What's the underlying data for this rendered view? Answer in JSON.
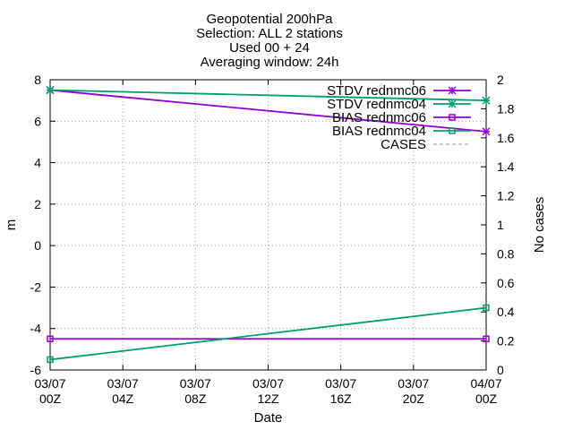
{
  "chart_data": {
    "type": "line",
    "title_lines": [
      "Geopotential 200hPa",
      "Selection: ALL      2 stations",
      "Used 00 + 24",
      "Averaging window: 24h"
    ],
    "xlabel": "Date",
    "ylabel": "m",
    "y2label": "No cases",
    "xlim": [
      0,
      24
    ],
    "ylim": [
      -6,
      8
    ],
    "y2lim": [
      0,
      2
    ],
    "x_ticks": [
      {
        "value": 0,
        "line1": "03/07",
        "line2": "00Z"
      },
      {
        "value": 4,
        "line1": "03/07",
        "line2": "04Z"
      },
      {
        "value": 8,
        "line1": "03/07",
        "line2": "08Z"
      },
      {
        "value": 12,
        "line1": "03/07",
        "line2": "12Z"
      },
      {
        "value": 16,
        "line1": "03/07",
        "line2": "16Z"
      },
      {
        "value": 20,
        "line1": "03/07",
        "line2": "20Z"
      },
      {
        "value": 24,
        "line1": "04/07",
        "line2": "00Z"
      }
    ],
    "y_ticks": [
      -6,
      -4,
      -2,
      0,
      2,
      4,
      6,
      8
    ],
    "y2_ticks": [
      "0",
      "0.2",
      "0.4",
      "0.6",
      "0.8",
      "1",
      "1.2",
      "1.4",
      "1.6",
      "1.8",
      "2"
    ],
    "grid": true,
    "legend_position": "top-right",
    "series": [
      {
        "name": "STDV rednmc06",
        "color": "#9400d3",
        "marker": "star",
        "dash": false,
        "x": [
          0,
          24
        ],
        "y": [
          7.5,
          5.5
        ]
      },
      {
        "name": "STDV rednmc04",
        "color": "#009e73",
        "marker": "star",
        "dash": false,
        "x": [
          0,
          24
        ],
        "y": [
          7.5,
          7.0
        ]
      },
      {
        "name": "BIAS rednmc06",
        "color": "#9400d3",
        "marker": "square",
        "dash": false,
        "x": [
          0,
          24
        ],
        "y": [
          -4.5,
          -4.5
        ]
      },
      {
        "name": "BIAS rednmc04",
        "color": "#009e73",
        "marker": "square",
        "dash": false,
        "x": [
          0,
          24
        ],
        "y": [
          -5.5,
          -3.0
        ]
      },
      {
        "name": "CASES",
        "color": "#999999",
        "marker": "none",
        "dash": true,
        "x": [],
        "y": []
      }
    ]
  }
}
